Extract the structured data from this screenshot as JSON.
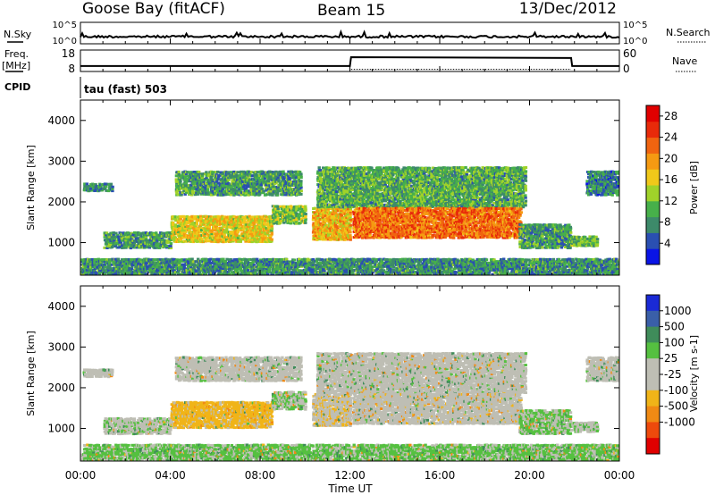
{
  "header": {
    "station": "Goose Bay (fitACF)",
    "beam": "Beam 15",
    "date": "13/Dec/2012"
  },
  "nsky_panel": {
    "left_label": "N.Sky",
    "right_label": "N.Search",
    "left_ticks": [
      "10^5",
      "10^0"
    ],
    "right_ticks": [
      "10^5",
      "10^0"
    ]
  },
  "freq_panel": {
    "left_label_line1": "Freq.",
    "left_label_line2": "[MHz]",
    "right_label": "Nave",
    "left_ticks": [
      "18",
      "8"
    ],
    "right_ticks": [
      "60",
      "0"
    ],
    "freq_steps": [
      {
        "t": 0,
        "mhz": 10.3
      },
      {
        "t": 12.0,
        "mhz": 10.3
      },
      {
        "t": 12.05,
        "mhz": 15.8
      },
      {
        "t": 21.85,
        "mhz": 15.3
      },
      {
        "t": 21.9,
        "mhz": 10.3
      },
      {
        "t": 24,
        "mhz": 10.3
      }
    ],
    "nave_level": 7
  },
  "cpid_panel": {
    "label": "CPID",
    "program": "tau (fast) 503"
  },
  "power_panel": {
    "ylabel": "Slant Range [km]",
    "yticks": [
      "1000",
      "2000",
      "3000",
      "4000"
    ],
    "colorbar_label": "Power [dB]",
    "colorbar_ticks": [
      "4",
      "8",
      "12",
      "16",
      "20",
      "24",
      "28"
    ],
    "colors": [
      "#0a14e6",
      "#2a4fb2",
      "#3d8a6a",
      "#47b04a",
      "#a0d22a",
      "#f0c81a",
      "#f59a12",
      "#f06410",
      "#e82a0a",
      "#e00000"
    ]
  },
  "velocity_panel": {
    "ylabel": "Slant Range [km]",
    "yticks": [
      "1000",
      "2000",
      "3000",
      "4000"
    ],
    "colorbar_label": "Velocity [m s-1]",
    "colorbar_ticks": [
      "1000",
      "500",
      "100",
      "25",
      "-25",
      "-100",
      "-500",
      "-1000"
    ],
    "colors": [
      "#1a2ad6",
      "#3a5fa8",
      "#3f8c5a",
      "#55c040",
      "#bebeb4",
      "#bebeb4",
      "#f0b418",
      "#f08a14",
      "#ee4a0c",
      "#e00000"
    ]
  },
  "x_axis": {
    "label": "Time UT",
    "ticks": [
      "00:00",
      "04:00",
      "08:00",
      "12:00",
      "16:00",
      "20:00",
      "00:00"
    ]
  },
  "chart_data": {
    "type": "heatmap",
    "x_range_hours": [
      0,
      24
    ],
    "y_range_km": [
      200,
      4500
    ],
    "power_dB_range": [
      0,
      30
    ],
    "velocity_range": [
      -1000,
      1000
    ],
    "echo_regions": [
      {
        "t": [
          0.1,
          1.4
        ],
        "r": [
          2300,
          2500
        ],
        "power": 8,
        "vel": 10
      },
      {
        "t": [
          1.0,
          4.0
        ],
        "r": [
          900,
          1300
        ],
        "power": 9,
        "vel": 20
      },
      {
        "t": [
          4.2,
          9.8
        ],
        "r": [
          2200,
          2800
        ],
        "power": 9,
        "vel": 10
      },
      {
        "t": [
          4.0,
          8.5
        ],
        "r": [
          1050,
          1700
        ],
        "power": 16,
        "vel": -60
      },
      {
        "t": [
          8.5,
          10.0
        ],
        "r": [
          1500,
          1950
        ],
        "power": 12,
        "vel": 30
      },
      {
        "t": [
          10.3,
          12.0
        ],
        "r": [
          1100,
          1900
        ],
        "power": 18,
        "vel": -20
      },
      {
        "t": [
          10.5,
          19.8
        ],
        "r": [
          1900,
          2900
        ],
        "power": 10,
        "vel": 10
      },
      {
        "t": [
          12.1,
          19.6
        ],
        "r": [
          1150,
          1900
        ],
        "power": 22,
        "vel": -10
      },
      {
        "t": [
          19.5,
          21.8
        ],
        "r": [
          900,
          1500
        ],
        "power": 9,
        "vel": 40
      },
      {
        "t": [
          21.8,
          23.0
        ],
        "r": [
          950,
          1200
        ],
        "power": 11,
        "vel": 20
      },
      {
        "t": [
          22.5,
          24.0
        ],
        "r": [
          2200,
          2800
        ],
        "power": 7,
        "vel": 10
      },
      {
        "t": [
          0,
          24
        ],
        "r": [
          250,
          650
        ],
        "power": 8,
        "vel": 50
      }
    ]
  }
}
